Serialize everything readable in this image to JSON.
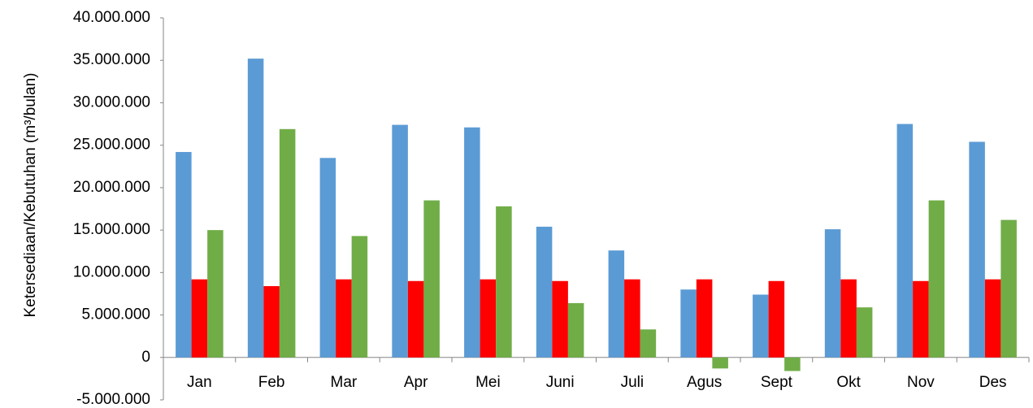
{
  "chart_data": {
    "type": "bar",
    "y_label": "Ketersediaan/Kebutuhan (m³/bulan)",
    "categories": [
      "Jan",
      "Feb",
      "Mar",
      "Apr",
      "Mei",
      "Juni",
      "Juli",
      "Agus",
      "Sept",
      "Okt",
      "Nov",
      "Des"
    ],
    "series": [
      {
        "color": "#5b9bd5",
        "values": [
          24200000,
          35200000,
          23500000,
          27400000,
          27100000,
          15400000,
          12600000,
          8000000,
          7400000,
          15100000,
          27500000,
          25400000
        ]
      },
      {
        "color": "#ff0000",
        "values": [
          9200000,
          8400000,
          9200000,
          9000000,
          9200000,
          9000000,
          9200000,
          9200000,
          9000000,
          9200000,
          9000000,
          9200000
        ]
      },
      {
        "color": "#70ad47",
        "values": [
          15000000,
          26900000,
          14300000,
          18500000,
          17800000,
          6400000,
          3300000,
          -1300000,
          -1600000,
          5900000,
          18500000,
          16200000
        ]
      }
    ],
    "ylim": [
      -5000000,
      40000000
    ],
    "yticks": [
      {
        "value": -5000000,
        "label": "-5.000.000"
      },
      0,
      {
        "value": 5000000,
        "label": "5.000.000"
      },
      {
        "value": 10000000,
        "label": "10.000.000"
      },
      {
        "value": 15000000,
        "label": "15.000.000"
      },
      {
        "value": 20000000,
        "label": "20.000.000"
      },
      {
        "value": 25000000,
        "label": "25.000.000"
      },
      {
        "value": 30000000,
        "label": "30.000.000"
      },
      {
        "value": 35000000,
        "label": "35.000.000"
      },
      {
        "value": 40000000,
        "label": "40.000.000"
      }
    ],
    "grid": false
  }
}
